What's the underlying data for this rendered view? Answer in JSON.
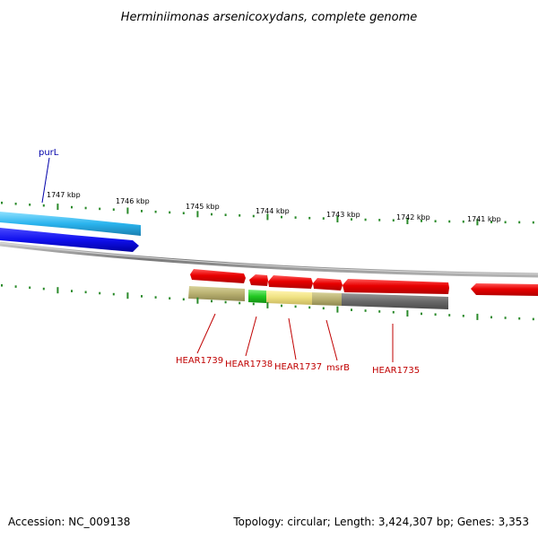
{
  "title": "Herminiimonas arsenicoxydans, complete genome",
  "footer": {
    "accession": "Accession: NC_009138",
    "summary": "Topology: circular; Length: 3,424,307 bp; Genes: 3,353"
  },
  "colors": {
    "backbone": "#8c8c8c",
    "ticks": "#2a8a2a",
    "forward_gene": "#e80000",
    "reverse_gene": "#1010ee",
    "reverse_cds": "#2ab4ee",
    "label_forward": "#c00000",
    "label_reverse": "#0000aa"
  },
  "ruler": {
    "unit": "kbp",
    "labels": [
      {
        "text": "1747 kbp",
        "value": 1747
      },
      {
        "text": "1746 kbp",
        "value": 1746
      },
      {
        "text": "1745 kbp",
        "value": 1745
      },
      {
        "text": "1744 kbp",
        "value": 1744
      },
      {
        "text": "1743 kbp",
        "value": 1743
      },
      {
        "text": "1742 kbp",
        "value": 1742
      },
      {
        "text": "1741 kbp",
        "value": 1741
      }
    ]
  },
  "genes": [
    {
      "name": "purL",
      "strand": "reverse"
    },
    {
      "name": "HEAR1739",
      "strand": "forward"
    },
    {
      "name": "HEAR1738",
      "strand": "forward"
    },
    {
      "name": "HEAR1737",
      "strand": "forward"
    },
    {
      "name": "msrB",
      "strand": "forward"
    },
    {
      "name": "HEAR1735",
      "strand": "forward"
    }
  ]
}
